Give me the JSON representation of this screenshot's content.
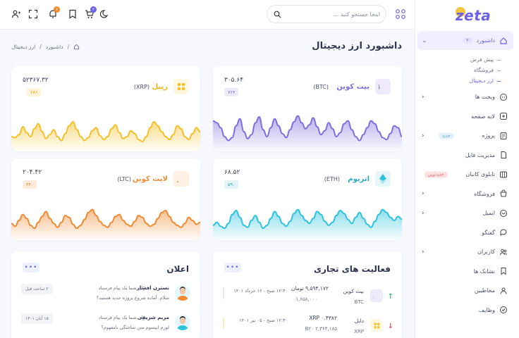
{
  "brand": {
    "logo": "zeta",
    "accent": "#6b62e8"
  },
  "topbar": {
    "search_placeholder": "اینجا جستجو کنید ...",
    "cart_count": "۲",
    "notif_count": "۶"
  },
  "page": {
    "title": "داشبورد ارز دیجیتال",
    "breadcrumb": [
      "داشبورد",
      "/",
      "ارز دیجیتال",
      "/"
    ]
  },
  "sidebar": {
    "dashboard": {
      "label": "داشبورد",
      "count": "۳"
    },
    "subitems": [
      "پیش فرض",
      "فروشگاه",
      "ارز دیجیتال"
    ],
    "items": [
      {
        "label": "ویجت ها",
        "icon": "widget-icon"
      },
      {
        "label": "لایه صفحه",
        "icon": "layout-icon"
      },
      {
        "label": "پروژه",
        "icon": "project-icon",
        "badge": "جدید"
      },
      {
        "label": "مدیریت فایل",
        "icon": "file-icon"
      },
      {
        "label": "تابلوی کانبان",
        "icon": "kanban-icon",
        "badge": "جدیدترین"
      },
      {
        "label": "فروشگاه",
        "icon": "shop-icon"
      },
      {
        "label": "ایمیل",
        "icon": "mail-icon"
      },
      {
        "label": "گفتگو",
        "icon": "chat-icon"
      },
      {
        "label": "کاربران",
        "icon": "users-icon"
      },
      {
        "label": "نشانک ها",
        "icon": "bookmark-icon"
      },
      {
        "label": "مخاطبین",
        "icon": "contact-icon"
      },
      {
        "label": "وظایف",
        "icon": "task-icon"
      }
    ]
  },
  "coins": [
    {
      "name": "بیت کوین",
      "symbol": "(BTC)",
      "price": "۳۰۵.۶۴",
      "change": "۷۶۴",
      "color": "#7f6ee0",
      "badge_bg": "#eeeafc",
      "change_bg": "#eceaf8",
      "change_color": "#7f6ee0",
      "spark": [
        62,
        58,
        48,
        30,
        22,
        28,
        52,
        66,
        40,
        26,
        34,
        58,
        70,
        44,
        30,
        48,
        66,
        52,
        36,
        28,
        44,
        60,
        72,
        58,
        46,
        54,
        68,
        50,
        34,
        42,
        58,
        46,
        30,
        38,
        56,
        62,
        44,
        30,
        22,
        34,
        48,
        62,
        56,
        40,
        28,
        24,
        36,
        52,
        48,
        30
      ]
    },
    {
      "name": "ریپل",
      "symbol": "(XRP)",
      "price": "۵۲۳۶۷.۳۲",
      "change": "۲۸۶",
      "color": "#f5c02a",
      "badge_bg": "#fff7df",
      "change_bg": "#fff4d9",
      "change_color": "#e9a915",
      "spark": [
        30,
        28,
        34,
        50,
        38,
        30,
        46,
        56,
        40,
        26,
        34,
        44,
        30,
        22,
        36,
        52,
        60,
        44,
        30,
        22,
        28,
        42,
        48,
        32,
        24,
        30,
        46,
        54,
        38,
        26,
        30,
        42,
        36,
        24,
        20,
        30,
        48,
        60,
        52,
        40,
        30,
        24,
        34,
        52,
        46,
        30,
        24,
        36,
        48,
        40
      ]
    },
    {
      "name": "اتریوم",
      "symbol": "(ETH)",
      "price": "۶۸.۵۲",
      "change": "۵۹۰",
      "color": "#2ec3dd",
      "badge_bg": "#e6f7fb",
      "change_bg": "#e2f4f8",
      "change_color": "#2aa8c0",
      "spark": [
        30,
        36,
        28,
        24,
        34,
        52,
        60,
        46,
        30,
        26,
        40,
        50,
        36,
        24,
        30,
        44,
        58,
        48,
        34,
        28,
        38,
        54,
        62,
        50,
        40,
        34,
        44,
        58,
        52,
        38,
        30,
        36,
        50,
        60,
        54,
        42,
        34,
        46,
        56,
        44,
        32,
        26,
        38,
        52,
        62,
        56,
        46,
        40,
        48,
        42
      ]
    },
    {
      "name": "لایت کوین",
      "symbol": "(LTC)",
      "price": "۲۰۴.۴۲",
      "change": "۲۴۰",
      "color": "#f28a32",
      "badge_bg": "#fef0e2",
      "change_bg": "#fdebdb",
      "change_color": "#e77a1e",
      "spark": [
        34,
        28,
        40,
        52,
        44,
        30,
        24,
        36,
        48,
        58,
        44,
        34,
        26,
        36,
        50,
        46,
        32,
        24,
        30,
        42,
        56,
        62,
        50,
        38,
        30,
        26,
        36,
        48,
        52,
        40,
        32,
        28,
        38,
        50,
        46,
        34,
        28,
        32,
        44,
        56,
        60,
        48,
        36,
        30,
        26,
        34,
        46,
        40,
        32,
        36
      ]
    }
  ],
  "activity": {
    "title": "فعالیت های تجاری",
    "more": "•••",
    "rows": [
      {
        "name": "بیت کوین",
        "symbol": "BTC",
        "amount": "۹,۵۹۴,۱۷۲ تومان",
        "amount2": "۱,۶۵۸,۰۰۰",
        "time": "۱۲:۳۰ صبح - ۱۶ خرداد ۱۴۰۱",
        "direction": "up",
        "arrow": "↑",
        "color": "#7f6ee0",
        "bar": "#e9e6fb"
      },
      {
        "name": "دایل",
        "symbol": "XRP",
        "amount": "XRP ۰.۴۳۸۲",
        "amount2": "B۲۰ ۲,۳۶۴,۱۸۵",
        "time": "۱۲:۳۰ صبح - ۰۵ تیر ۱۴۰۱",
        "direction": "down",
        "arrow": "↓",
        "color": "#f5c02a",
        "bar": "#fdeebf"
      }
    ]
  },
  "announcements": {
    "title": "اعلان",
    "more": "•••",
    "rows": [
      {
        "name": "نسترن افشار",
        "line1": "برای شما یک پیام فرستاد",
        "line2": "سلام. آماده شروع پروژه جدید هستید؟",
        "time": "۲ ساعت قبل"
      },
      {
        "name": "مریم شریفی",
        "line1": "برای شما یک پیام فرستاد",
        "line2": "لورم ایپسوم متن ساختگی نامفهوم؟",
        "time": "۱۵ آبان ۱۴۰۱"
      }
    ]
  }
}
